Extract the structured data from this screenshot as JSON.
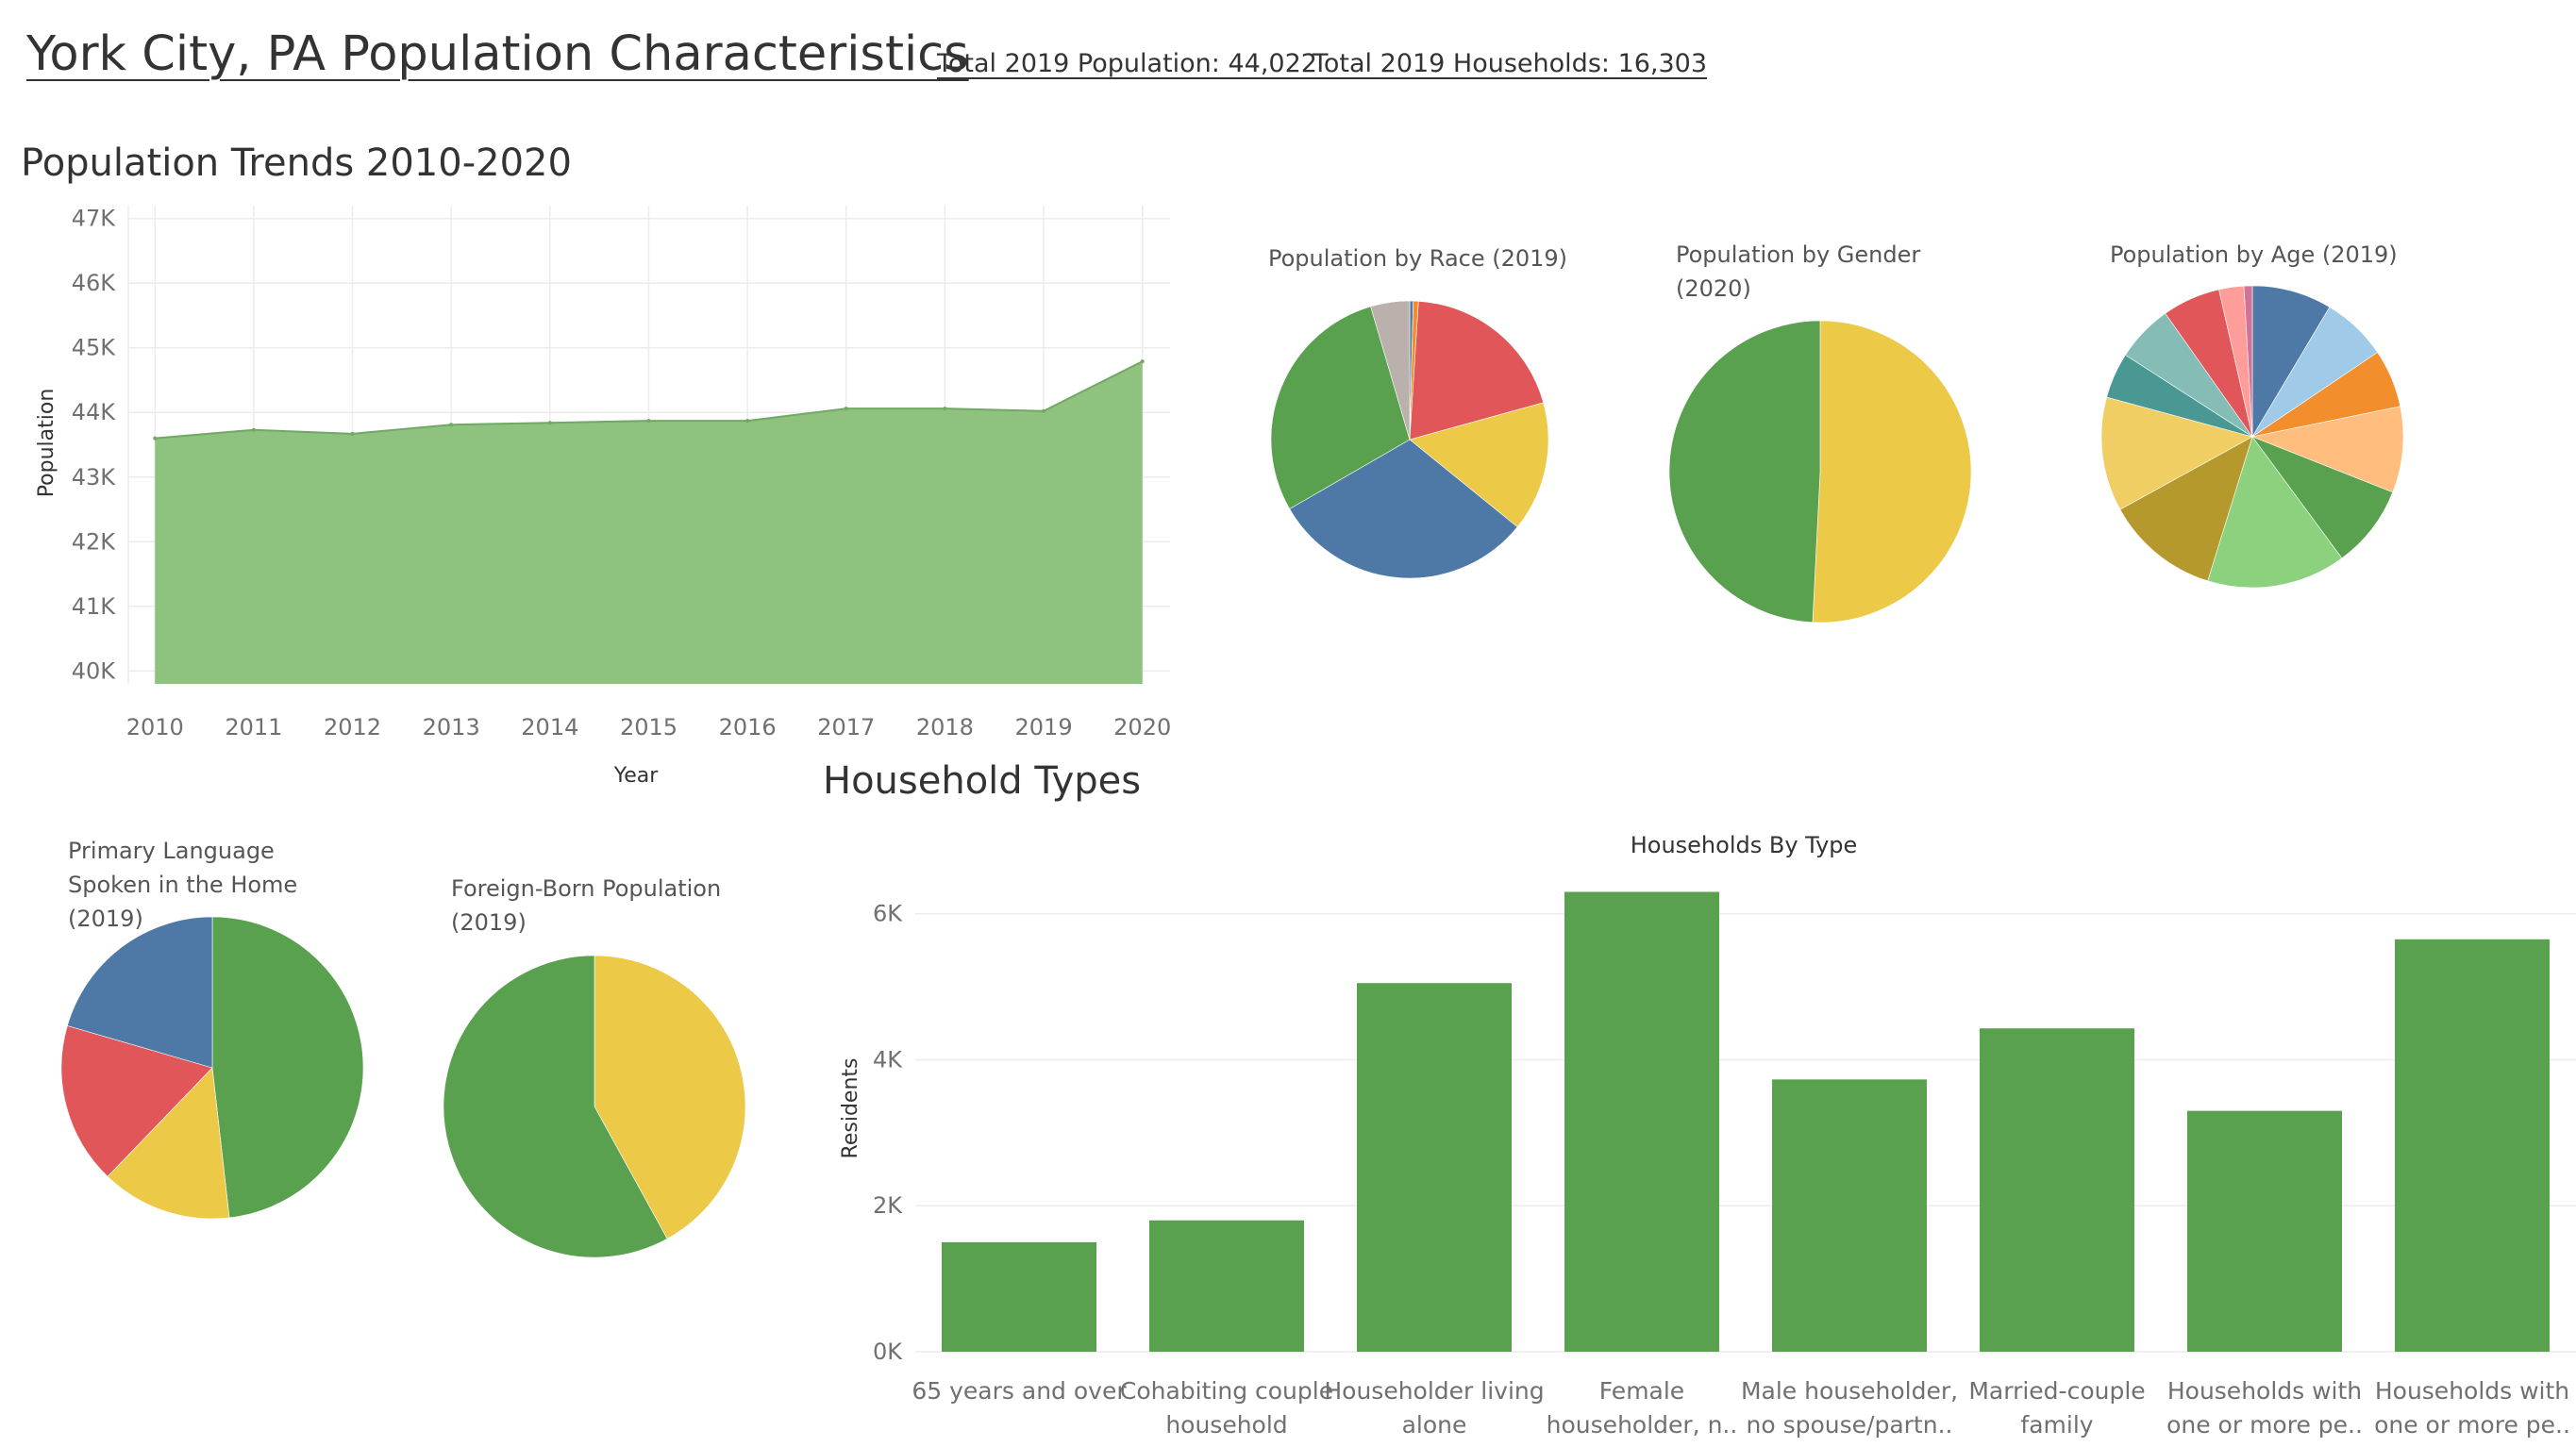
{
  "header": {
    "title": "York City, PA Population Characteristics",
    "total_population": "Total 2019 Population: 44,022",
    "total_households": "Total 2019 Households: 16,303"
  },
  "sections": {
    "trends": "Population Trends 2010-2020",
    "household": "Household Types"
  },
  "chart_data": [
    {
      "id": "trend",
      "type": "area",
      "title": "",
      "xlabel": "Year",
      "ylabel": "Population",
      "x": [
        2010,
        2011,
        2012,
        2013,
        2014,
        2015,
        2016,
        2017,
        2018,
        2019,
        2020
      ],
      "values": [
        43600,
        43730,
        43670,
        43810,
        43840,
        43870,
        43870,
        44060,
        44060,
        44022,
        44790
      ],
      "ylim": [
        39800,
        47200
      ],
      "yticks": [
        40000,
        41000,
        42000,
        43000,
        44000,
        45000,
        46000,
        47000
      ],
      "ytick_labels": [
        "40K",
        "41K",
        "42K",
        "43K",
        "44K",
        "45K",
        "46K",
        "47K"
      ],
      "color": "#8fc17f",
      "grid": true
    },
    {
      "id": "race",
      "type": "pie",
      "title": "Population by Race (2019)",
      "values": [
        0.4,
        0.6,
        19.5,
        15.0,
        30.5,
        28.5,
        4.5
      ],
      "colors": [
        "#4e79a7",
        "#f28e2b",
        "#e15759",
        "#edc948",
        "#4e79a7",
        "#59a14f",
        "#bab0ac"
      ]
    },
    {
      "id": "gender",
      "type": "pie",
      "title": "Population by Gender (2020)",
      "values": [
        50.8,
        49.2
      ],
      "colors": [
        "#edc948",
        "#59a14f"
      ]
    },
    {
      "id": "age",
      "type": "pie",
      "title": "Population by Age (2019)",
      "values": [
        7.7,
        6.3,
        5.6,
        8.3,
        8.0,
        13.4,
        11.0,
        11.0,
        4.4,
        5.5,
        5.6,
        2.4,
        0.8
      ],
      "colors": [
        "#4e79a7",
        "#a0cbe8",
        "#f28e2b",
        "#ffbe7d",
        "#59a14f",
        "#8cd17d",
        "#b6992d",
        "#f1ce63",
        "#499894",
        "#86bcb6",
        "#e15759",
        "#ff9d9a",
        "#d37295"
      ]
    },
    {
      "id": "language",
      "type": "pie",
      "title": "Primary Language Spoken in the Home (2019)",
      "values": [
        48.2,
        14.0,
        17.3,
        20.5
      ],
      "colors": [
        "#59a14f",
        "#edc948",
        "#e15759",
        "#4e79a7"
      ]
    },
    {
      "id": "foreign",
      "type": "pie",
      "title": "Foreign-Born Population (2019)",
      "values": [
        42.0,
        58.0
      ],
      "colors": [
        "#edc948",
        "#59a14f"
      ]
    },
    {
      "id": "households",
      "type": "bar",
      "title": "Households By Type",
      "ylabel": "Residents",
      "categories": [
        [
          "65 years and over"
        ],
        [
          "Cohabiting couple",
          "household"
        ],
        [
          "Householder living",
          "alone"
        ],
        [
          "Female",
          "householder, n.."
        ],
        [
          "Male householder,",
          "no spouse/partn.."
        ],
        [
          "Married-couple",
          "family"
        ],
        [
          "Households with",
          "one or more pe.."
        ],
        [
          "Households with",
          "one or more pe.."
        ]
      ],
      "values": [
        1500,
        1800,
        5050,
        6300,
        3730,
        4430,
        3300,
        5650
      ],
      "ylim": [
        0,
        6500
      ],
      "yticks": [
        0,
        2000,
        4000,
        6000
      ],
      "ytick_labels": [
        "0K",
        "2K",
        "4K",
        "6K"
      ],
      "color": "#59a14f",
      "grid": true
    }
  ]
}
